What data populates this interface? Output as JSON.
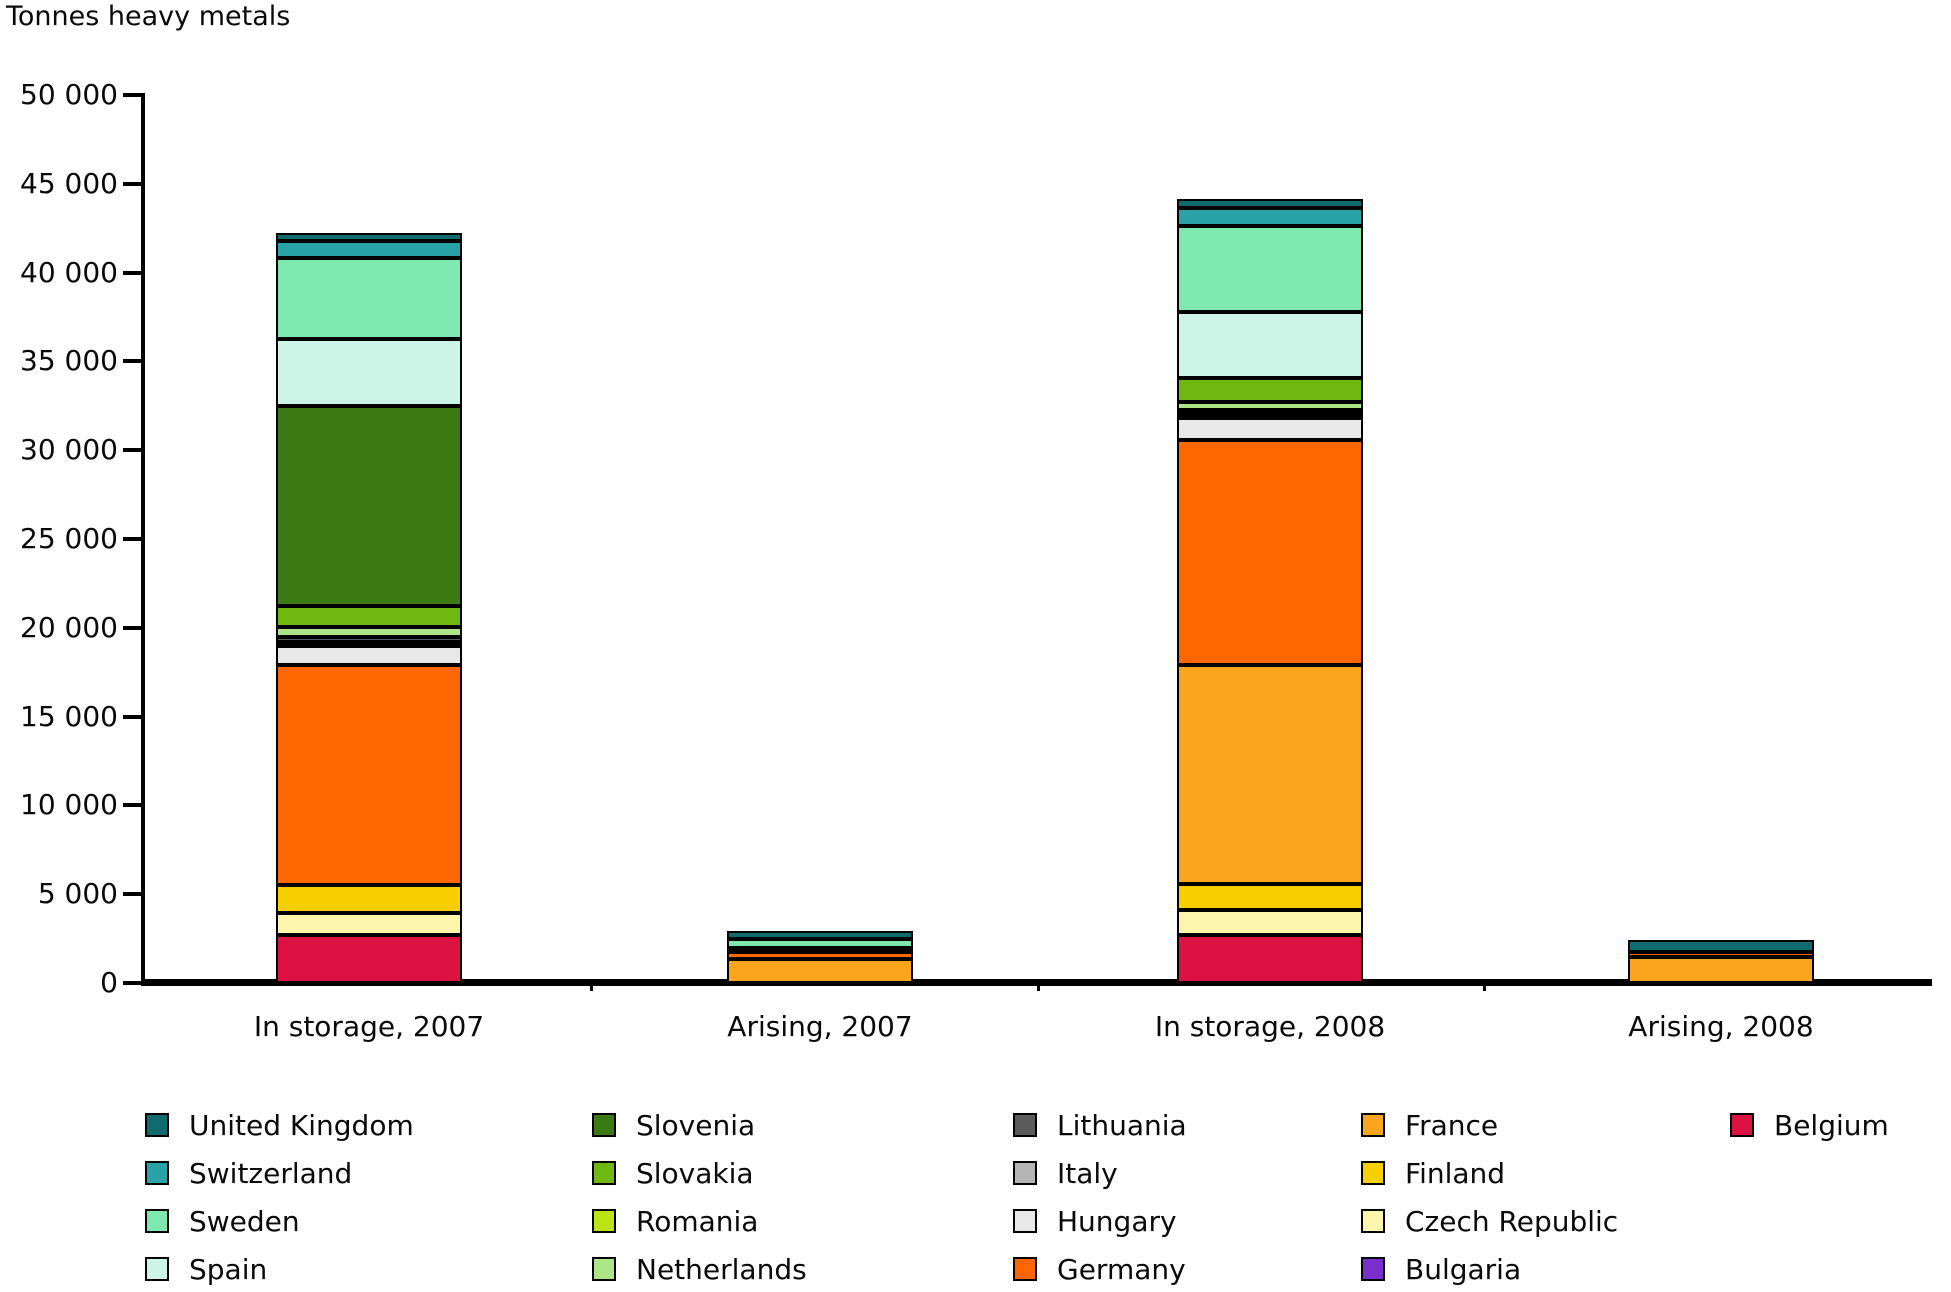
{
  "title": "Tonnes heavy metals",
  "chart_data": {
    "type": "bar",
    "subtype": "stacked-vertical",
    "title": "Tonnes heavy metals",
    "xlabel": "",
    "ylabel": "Tonnes heavy metals",
    "grid": false,
    "legend_position": "bottom",
    "categories": [
      "In storage, 2007",
      "Arising, 2007",
      "In storage, 2008",
      "Arising, 2008"
    ],
    "y_axis": {
      "min": 0,
      "max": 50000,
      "tick_interval": 5000,
      "tick_labels_top_to_bottom": [
        "50 000",
        "45 000",
        "40 000",
        "35 000",
        "30 000",
        "25 000",
        "20 000",
        "15 000",
        "10 000",
        "5 000",
        "0"
      ]
    },
    "series": [
      {
        "name": "Belgium",
        "color": "#DC1243",
        "values": [
          2715,
          0,
          2700,
          0
        ]
      },
      {
        "name": "Bulgaria",
        "color": "#7A2FCF",
        "values": [
          0,
          0,
          0,
          0
        ]
      },
      {
        "name": "Czech Republic",
        "color": "#FBF6AB",
        "values": [
          1215,
          0,
          1410,
          0
        ]
      },
      {
        "name": "Finland",
        "color": "#F7CE00",
        "values": [
          1590,
          0,
          1500,
          0
        ]
      },
      {
        "name": "France",
        "color": "#FBA41D",
        "values": [
          0,
          1430,
          12420,
          1450
        ]
      },
      {
        "name": "Germany",
        "color": "#FF6600",
        "values": [
          12415,
          360,
          12730,
          300
        ]
      },
      {
        "name": "Hungary",
        "color": "#E8E8E8",
        "values": [
          1065,
          0,
          1270,
          0
        ]
      },
      {
        "name": "Italy",
        "color": "#B5B5B5",
        "values": [
          170,
          0,
          80,
          0
        ]
      },
      {
        "name": "Lithuania",
        "color": "#5C5C5C",
        "values": [
          310,
          0,
          80,
          0
        ]
      },
      {
        "name": "Netherlands",
        "color": "#ACE487",
        "values": [
          530,
          0,
          450,
          0
        ]
      },
      {
        "name": "Romania",
        "color": "#BCE313",
        "values": [
          0,
          0,
          0,
          0
        ]
      },
      {
        "name": "Slovakia",
        "color": "#6EB80F",
        "values": [
          1165,
          0,
          1350,
          0
        ]
      },
      {
        "name": "Slovenia",
        "color": "#3C7A14",
        "values": [
          11280,
          0,
          0,
          0
        ]
      },
      {
        "name": "Spain",
        "color": "#CCF5E8",
        "values": [
          3780,
          140,
          3750,
          0
        ]
      },
      {
        "name": "Sweden",
        "color": "#7FE8AE",
        "values": [
          4590,
          520,
          4880,
          0
        ]
      },
      {
        "name": "Switzerland",
        "color": "#2AA3A8",
        "values": [
          935,
          0,
          1030,
          0
        ]
      },
      {
        "name": "United Kingdom",
        "color": "#0F6B6E",
        "values": [
          490,
          480,
          470,
          650
        ]
      }
    ],
    "stack_order": "bottom-to-top as listed (alphabetical)",
    "totals": [
      42250,
      2930,
      44120,
      2400
    ]
  },
  "legend": {
    "columns": 5,
    "rows_per_column": 4,
    "entries_column_major": [
      {
        "label": "United Kingdom",
        "color": "#0F6B6E"
      },
      {
        "label": "Switzerland",
        "color": "#2AA3A8"
      },
      {
        "label": "Sweden",
        "color": "#7FE8AE"
      },
      {
        "label": "Spain",
        "color": "#CCF5E8"
      },
      {
        "label": "Slovenia",
        "color": "#3C7A14"
      },
      {
        "label": "Slovakia",
        "color": "#6EB80F"
      },
      {
        "label": "Romania",
        "color": "#BCE313"
      },
      {
        "label": "Netherlands",
        "color": "#ACE487"
      },
      {
        "label": "Lithuania",
        "color": "#5C5C5C"
      },
      {
        "label": "Italy",
        "color": "#B5B5B5"
      },
      {
        "label": "Hungary",
        "color": "#E8E8E8"
      },
      {
        "label": "Germany",
        "color": "#FF6600"
      },
      {
        "label": "France",
        "color": "#FBA41D"
      },
      {
        "label": "Finland",
        "color": "#F7CE00"
      },
      {
        "label": "Czech Republic",
        "color": "#FBF6AB"
      },
      {
        "label": "Bulgaria",
        "color": "#7A2FCF"
      },
      {
        "label": "Belgium",
        "color": "#DC1243"
      }
    ]
  }
}
